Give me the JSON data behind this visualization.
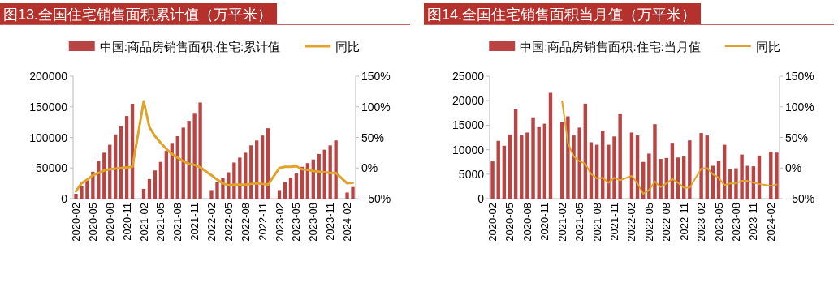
{
  "chart_data": [
    {
      "type": "bar",
      "title": "图13.全国住宅销售面积累计值（万平米）",
      "categories": [
        "2020-02",
        null,
        null,
        "2020-05",
        null,
        null,
        "2020-08",
        null,
        null,
        "2020-11",
        null,
        null,
        "2021-02",
        null,
        null,
        "2021-05",
        null,
        null,
        "2021-08",
        null,
        null,
        "2021-11",
        null,
        null,
        "2022-02",
        null,
        null,
        "2022-05",
        null,
        null,
        "2022-08",
        null,
        null,
        "2022-11",
        null,
        null,
        "2023-02",
        null,
        null,
        "2023-05",
        null,
        null,
        "2023-08",
        null,
        null,
        "2023-11",
        null,
        null,
        "2024-02",
        null
      ],
      "series": [
        {
          "name": "中国:商品房销售面积:住宅:累计值",
          "color": "#b84444",
          "values": [
            8000,
            20000,
            30000,
            44000,
            62000,
            75000,
            88000,
            105000,
            119000,
            135000,
            155000,
            null,
            16000,
            32000,
            46000,
            60000,
            78000,
            91000,
            102000,
            116000,
            127000,
            140000,
            157000,
            null,
            14000,
            27000,
            34000,
            43000,
            59000,
            67000,
            75000,
            87000,
            95000,
            103000,
            115000,
            null,
            14000,
            27000,
            34000,
            41000,
            52000,
            58000,
            64000,
            73000,
            80000,
            87000,
            95000,
            null,
            10000,
            19000
          ]
        },
        {
          "name": "同比",
          "type": "line",
          "axis": "y2",
          "color": "#e0a228",
          "values": [
            -38,
            -25,
            -19,
            -12,
            -8,
            -4,
            -2,
            -1,
            0,
            1,
            2,
            null,
            109,
            67,
            52,
            41,
            31,
            23,
            17,
            11,
            7,
            5,
            1,
            null,
            -12,
            -19,
            -25,
            -28,
            -27,
            -27,
            -27,
            -26,
            -25,
            -26,
            -27,
            null,
            0,
            2,
            2,
            3,
            -2,
            -3,
            -5,
            -6,
            -7,
            -8,
            -8,
            null,
            -25,
            -24
          ]
        }
      ],
      "ylim": [
        0,
        200000
      ],
      "yticks": [
        0,
        50000,
        100000,
        150000,
        200000
      ],
      "y2lim": [
        -50,
        150
      ],
      "y2ticks": [
        {
          "value": -50,
          "label": "−50%"
        },
        {
          "value": 0,
          "label": "0%"
        },
        {
          "value": 50,
          "label": "50%"
        },
        {
          "value": 100,
          "label": "100%"
        },
        {
          "value": 150,
          "label": "150%"
        }
      ],
      "legend": "top",
      "grid": false
    },
    {
      "type": "bar",
      "title": "图14.全国住宅销售面积当月值（万平米）",
      "categories": [
        "2020-02",
        null,
        null,
        "2020-05",
        null,
        null,
        "2020-08",
        null,
        null,
        "2020-11",
        null,
        null,
        "2021-02",
        null,
        null,
        "2021-05",
        null,
        null,
        "2021-08",
        null,
        null,
        "2021-11",
        null,
        null,
        "2022-02",
        null,
        null,
        "2022-05",
        null,
        null,
        "2022-08",
        null,
        null,
        "2022-11",
        null,
        null,
        "2023-02",
        null,
        null,
        "2023-05",
        null,
        null,
        "2023-08",
        null,
        null,
        "2023-11",
        null,
        null,
        "2024-02",
        null
      ],
      "series": [
        {
          "name": "中国:商品房销售面积:住宅:当月值",
          "color": "#b84444",
          "values": [
            7600,
            11800,
            10800,
            13100,
            18300,
            12900,
            13500,
            16600,
            14600,
            15300,
            21600,
            null,
            15600,
            16800,
            12900,
            14500,
            19400,
            11500,
            11000,
            13900,
            11000,
            12700,
            17400,
            null,
            13500,
            12900,
            7500,
            9200,
            15200,
            8100,
            8300,
            11400,
            8400,
            8600,
            11900,
            null,
            13400,
            12900,
            6700,
            7700,
            11000,
            6100,
            6200,
            9000,
            6700,
            6600,
            8800,
            null,
            9600,
            9400
          ]
        },
        {
          "name": "同比",
          "type": "line",
          "axis": "y2",
          "color": "#e0a228",
          "values": [
            null,
            null,
            null,
            null,
            null,
            null,
            null,
            null,
            null,
            null,
            null,
            null,
            109,
            41,
            19,
            11,
            7,
            -10,
            -17,
            -16,
            -24,
            -16,
            -20,
            null,
            -13,
            -25,
            -42,
            -36,
            -22,
            -31,
            -25,
            -18,
            -24,
            -32,
            -32,
            null,
            -1,
            0,
            -10,
            -16,
            -28,
            -25,
            -25,
            -21,
            -21,
            -24,
            -26,
            null,
            -29,
            -27
          ]
        }
      ],
      "ylim": [
        0,
        25000
      ],
      "yticks": [
        0,
        5000,
        10000,
        15000,
        20000,
        25000
      ],
      "y2lim": [
        -50,
        150
      ],
      "y2ticks": [
        {
          "value": -50,
          "label": "−50%"
        },
        {
          "value": 0,
          "label": "0%"
        },
        {
          "value": 50,
          "label": "50%"
        },
        {
          "value": 100,
          "label": "100%"
        },
        {
          "value": 150,
          "label": "150%"
        }
      ],
      "legend": "top",
      "grid": false
    }
  ]
}
